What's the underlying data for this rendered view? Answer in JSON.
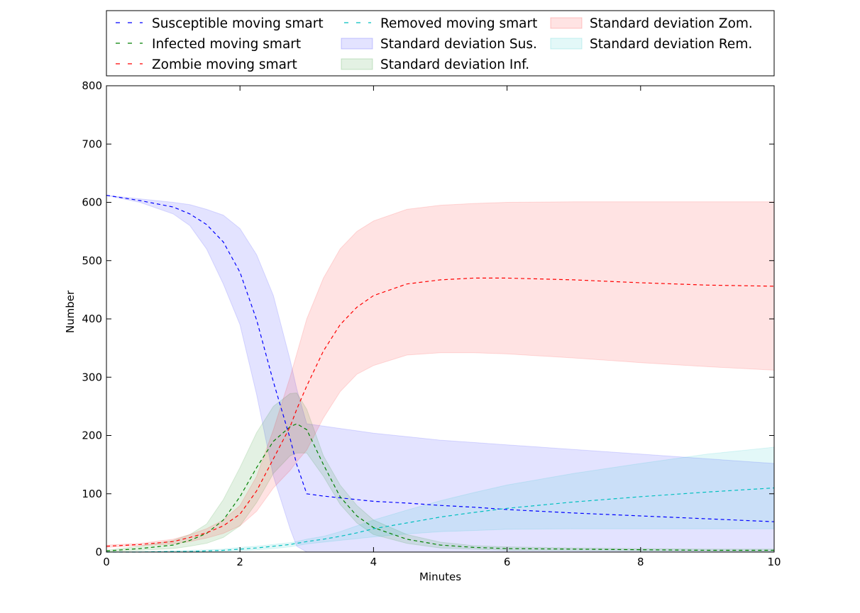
{
  "chart_data": {
    "type": "line",
    "title": "",
    "xlabel": "Minutes",
    "ylabel": "Number",
    "xlim": [
      0,
      10
    ],
    "ylim": [
      0,
      800
    ],
    "xticks": [
      0,
      2,
      4,
      6,
      8,
      10
    ],
    "yticks": [
      0,
      100,
      200,
      300,
      400,
      500,
      600,
      700,
      800
    ],
    "grid": false,
    "legend_position": "top",
    "x": [
      0,
      0.5,
      1,
      1.25,
      1.5,
      1.75,
      2,
      2.25,
      2.5,
      2.75,
      2.85,
      3,
      3.25,
      3.5,
      3.75,
      4,
      4.5,
      5,
      5.5,
      6,
      7,
      8,
      9,
      10
    ],
    "series": [
      {
        "name": "Susceptible moving smart",
        "kind": "line",
        "color": "#0000ff",
        "values": [
          612,
          603,
          592,
          580,
          562,
          532,
          480,
          398,
          292,
          195,
          150,
          100,
          96,
          93,
          90,
          87,
          84,
          80,
          77,
          73,
          67,
          62,
          57,
          52
        ]
      },
      {
        "name": "Infected moving smart",
        "kind": "line",
        "color": "#008000",
        "values": [
          2,
          6,
          12,
          20,
          32,
          55,
          95,
          145,
          190,
          215,
          220,
          210,
          150,
          95,
          62,
          42,
          22,
          12,
          8,
          6,
          5,
          4,
          3,
          3
        ]
      },
      {
        "name": "Zombie moving smart",
        "kind": "line",
        "color": "#ff0000",
        "values": [
          10,
          13,
          18,
          25,
          33,
          45,
          65,
          105,
          160,
          215,
          245,
          285,
          345,
          390,
          420,
          440,
          460,
          467,
          470,
          470,
          467,
          462,
          458,
          456
        ]
      },
      {
        "name": "Removed moving smart",
        "kind": "line",
        "color": "#00bfbf",
        "values": [
          0,
          0,
          1,
          1,
          2,
          3,
          5,
          7,
          10,
          13,
          15,
          18,
          22,
          27,
          33,
          40,
          50,
          60,
          68,
          75,
          86,
          95,
          103,
          110
        ]
      },
      {
        "name": "Standard deviation Sus.",
        "kind": "band",
        "color": "#0000ff",
        "upper": [
          612,
          606,
          600,
          596,
          588,
          578,
          555,
          510,
          440,
          330,
          280,
          220,
          216,
          212,
          208,
          204,
          198,
          192,
          188,
          184,
          176,
          168,
          160,
          152
        ],
        "lower": [
          612,
          600,
          580,
          560,
          520,
          460,
          390,
          270,
          130,
          40,
          10,
          0,
          0,
          0,
          0,
          0,
          0,
          0,
          0,
          0,
          0,
          0,
          0,
          0
        ]
      },
      {
        "name": "Standard deviation Inf.",
        "kind": "band",
        "color": "#008000",
        "upper": [
          3,
          10,
          20,
          30,
          48,
          90,
          145,
          205,
          250,
          272,
          273,
          245,
          165,
          115,
          80,
          55,
          30,
          17,
          11,
          9,
          7,
          6,
          5,
          5
        ],
        "lower": [
          1,
          3,
          6,
          10,
          15,
          25,
          45,
          85,
          135,
          165,
          170,
          170,
          130,
          82,
          50,
          30,
          15,
          7,
          5,
          3,
          3,
          2,
          2,
          1
        ]
      },
      {
        "name": "Standard deviation Zom.",
        "kind": "band",
        "color": "#ff0000",
        "upper": [
          12,
          15,
          22,
          30,
          40,
          55,
          80,
          130,
          210,
          300,
          340,
          400,
          470,
          520,
          550,
          568,
          588,
          595,
          598,
          600,
          601,
          601,
          601,
          601
        ],
        "lower": [
          8,
          11,
          14,
          18,
          24,
          32,
          45,
          70,
          110,
          140,
          155,
          175,
          230,
          275,
          305,
          320,
          338,
          342,
          342,
          340,
          333,
          325,
          318,
          312
        ]
      },
      {
        "name": "Standard deviation Rem.",
        "kind": "band",
        "color": "#00bfbf",
        "upper": [
          0,
          1,
          2,
          3,
          4,
          5,
          8,
          10,
          13,
          16,
          18,
          22,
          27,
          35,
          45,
          55,
          72,
          88,
          102,
          115,
          135,
          152,
          168,
          180
        ],
        "lower": [
          0,
          0,
          0,
          0,
          0,
          1,
          2,
          4,
          6,
          9,
          11,
          14,
          17,
          20,
          23,
          26,
          31,
          35,
          37,
          39,
          40,
          40,
          40,
          40
        ]
      }
    ],
    "legend_order": [
      "Susceptible moving smart",
      "Infected moving smart",
      "Zombie moving smart",
      "Removed moving smart",
      "Standard deviation Sus.",
      "Standard deviation Inf.",
      "Standard deviation Zom.",
      "Standard deviation Rem."
    ]
  }
}
